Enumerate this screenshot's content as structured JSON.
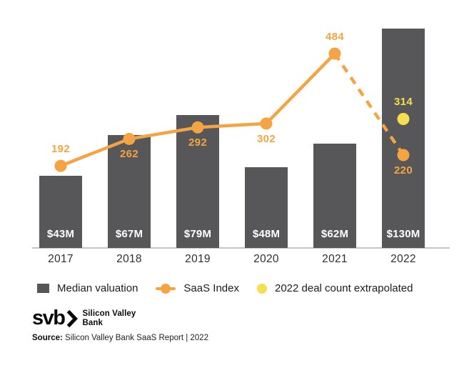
{
  "chart_data": {
    "type": "bar",
    "title": "",
    "categories": [
      "2017",
      "2018",
      "2019",
      "2020",
      "2021",
      "2022"
    ],
    "series": [
      {
        "name": "Median valuation",
        "type": "bar",
        "values": [
          43,
          67,
          79,
          48,
          62,
          130
        ],
        "labels": [
          "$43M",
          "$67M",
          "$79M",
          "$48M",
          "$62M",
          "$130M"
        ],
        "unit": "$M",
        "color": "#57575a"
      },
      {
        "name": "SaaS Index",
        "type": "line",
        "values": [
          192,
          262,
          292,
          302,
          484,
          220
        ],
        "label_positions": [
          "above",
          "below",
          "below",
          "below",
          "above",
          "below"
        ],
        "dashed_from_category": "2021",
        "color": "#f5a444"
      },
      {
        "name": "2022 deal count extrapolated",
        "type": "point",
        "category": "2022",
        "value": 314,
        "label_position": "above",
        "color": "#f5df4d"
      }
    ],
    "legend": [
      {
        "label": "Median valuation",
        "marker": "square",
        "color": "#57575a"
      },
      {
        "label": "SaaS Index",
        "marker": "line-dot",
        "color": "#f5a444"
      },
      {
        "label": "2022 deal count extrapolated",
        "marker": "dot",
        "color": "#f5df4d"
      }
    ],
    "legend_position": "bottom",
    "grid": false,
    "xlabel": "",
    "ylabel": ""
  },
  "footer": {
    "logo_text": "svb",
    "logo_name_line1": "Silicon Valley",
    "logo_name_line2": "Bank",
    "source_label": "Source:",
    "source_text": " Silicon Valley Bank SaaS Report | 2022"
  }
}
